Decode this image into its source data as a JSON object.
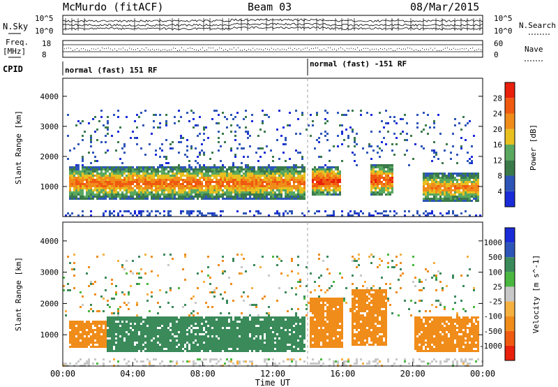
{
  "header": {
    "station": "McMurdo (fitACF)",
    "beam": "Beam 03",
    "date": "08/Mar/2015"
  },
  "noise_panel": {
    "left_label": "N.Sky",
    "right_label": "N.Search",
    "ticks_left": [
      "10^5",
      "10^0"
    ],
    "ticks_right": [
      "10^5",
      "10^0"
    ]
  },
  "freq_panel": {
    "left_label_1": "Freq.",
    "left_label_2": "[MHz]",
    "right_label": "Nave",
    "ticks_left": [
      "18",
      "8"
    ],
    "ticks_right": [
      "60",
      "0"
    ]
  },
  "cpid": {
    "label": "CPID",
    "segments": [
      {
        "start_hour": 0,
        "text": "normal (fast) 151 RF"
      },
      {
        "start_hour": 14,
        "text": "normal (fast) -151 RF"
      }
    ]
  },
  "colors": {
    "power": [
      "#1a2bd8",
      "#2d55b8",
      "#3a7a4a",
      "#5aa860",
      "#e8c020",
      "#f08c1a",
      "#f05a10",
      "#e8200c"
    ],
    "velocity": [
      "#e8200c",
      "#f05a10",
      "#f08c1a",
      "#f5b040",
      "#c8c8c8",
      "#4ab840",
      "#3a8a5a",
      "#2d55b8",
      "#1a2bd8"
    ],
    "dashed_line": "#a0a0a0"
  },
  "chart_data": [
    {
      "type": "heatmap",
      "panel": "power",
      "ylabel": "Slant Range [km]",
      "yticks": [
        "1000",
        "2000",
        "3000",
        "4000"
      ],
      "ylim": [
        0,
        4600
      ],
      "xlim": [
        0,
        24
      ],
      "colorbar_label": "Power [dB]",
      "colorbar_ticks": [
        "4",
        "8",
        "12",
        "16",
        "20",
        "24",
        "28"
      ],
      "colorbar_range": [
        0,
        32
      ],
      "bands": [
        {
          "x_start": 0.3,
          "x_end": 13.8,
          "y_low": 600,
          "y_high": 1700,
          "peak_db": 26
        },
        {
          "x_start": 14.2,
          "x_end": 15.8,
          "y_low": 700,
          "y_high": 1700,
          "peak_db": 30
        },
        {
          "x_start": 17.5,
          "x_end": 18.8,
          "y_low": 700,
          "y_high": 1800,
          "peak_db": 28
        },
        {
          "x_start": 20.5,
          "x_end": 23.8,
          "y_low": 500,
          "y_high": 1500,
          "peak_db": 24
        }
      ]
    },
    {
      "type": "heatmap",
      "panel": "velocity",
      "ylabel": "Slant Range [km]",
      "yticks": [
        "1000",
        "2000",
        "3000",
        "4000"
      ],
      "ylim": [
        0,
        4600
      ],
      "xlim": [
        0,
        24
      ],
      "xlabel": "Time UT",
      "xticks": [
        "00:00",
        "04:00",
        "08:00",
        "12:00",
        "16:00",
        "20:00",
        "00:00"
      ],
      "colorbar_label": "Velocity [m s^-1]",
      "colorbar_ticks": [
        "1000",
        "500",
        "100",
        "25",
        "-25",
        "-100",
        "-500",
        "-1000"
      ],
      "bands": [
        {
          "x_start": 0.3,
          "x_end": 2.5,
          "y_low": 600,
          "y_high": 1500,
          "velocity_ms": -300
        },
        {
          "x_start": 2.5,
          "x_end": 13.8,
          "y_low": 500,
          "y_high": 1600,
          "velocity_ms": 300
        },
        {
          "x_start": 14.0,
          "x_end": 16.0,
          "y_low": 600,
          "y_high": 2200,
          "velocity_ms": -300
        },
        {
          "x_start": 16.5,
          "x_end": 18.5,
          "y_low": 700,
          "y_high": 2500,
          "velocity_ms": -300
        },
        {
          "x_start": 20.0,
          "x_end": 23.8,
          "y_low": 500,
          "y_high": 1600,
          "velocity_ms": -300
        }
      ]
    }
  ]
}
